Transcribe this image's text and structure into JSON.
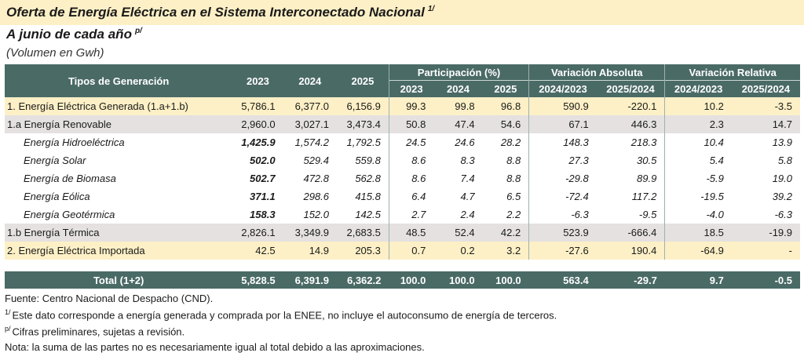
{
  "title": "Oferta de Energía Eléctrica  en el Sistema Interconectado Nacional",
  "title_note": "1/",
  "subtitle": "A junio de cada año",
  "subtitle_note": "p/",
  "units": "(Volumen en Gwh)",
  "header": {
    "tipos": "Tipos de Generación",
    "years": [
      "2023",
      "2024",
      "2025"
    ],
    "participacion": "Participación (%)",
    "participacion_years": [
      "2023",
      "2024",
      "2025"
    ],
    "var_abs": "Variación Absoluta",
    "var_abs_cols": [
      "2024/2023",
      "2025/2024"
    ],
    "var_rel": "Variación Relativa",
    "var_rel_cols": [
      "2024/2023",
      "2025/2024"
    ]
  },
  "rows": [
    {
      "label": "1.  Energía Eléctrica Generada (1.a+1.b)",
      "values": [
        "5,786.1",
        "6,377.0",
        "6,156.9",
        "99.3",
        "99.8",
        "96.8",
        "590.9",
        "-220.1",
        "10.2",
        "-3.5"
      ]
    },
    {
      "label": "1.a Energía Renovable",
      "values": [
        "2,960.0",
        "3,027.1",
        "3,473.4",
        "50.8",
        "47.4",
        "54.6",
        "67.1",
        "446.3",
        "2.3",
        "14.7"
      ]
    },
    {
      "label": "Energía Hidroeléctrica",
      "values": [
        "1,425.9",
        "1,574.2",
        "1,792.5",
        "24.5",
        "24.6",
        "28.2",
        "148.3",
        "218.3",
        "10.4",
        "13.9"
      ]
    },
    {
      "label": "Energía Solar",
      "values": [
        "502.0",
        "529.4",
        "559.8",
        "8.6",
        "8.3",
        "8.8",
        "27.3",
        "30.5",
        "5.4",
        "5.8"
      ]
    },
    {
      "label": "Energía de Biomasa",
      "values": [
        "502.7",
        "472.8",
        "562.8",
        "8.6",
        "7.4",
        "8.8",
        "-29.8",
        "89.9",
        "-5.9",
        "19.0"
      ]
    },
    {
      "label": "Energía Eólica",
      "values": [
        "371.1",
        "298.6",
        "415.8",
        "6.4",
        "4.7",
        "6.5",
        "-72.4",
        "117.2",
        "-19.5",
        "39.2"
      ]
    },
    {
      "label": "Energía Geotérmica",
      "values": [
        "158.3",
        "152.0",
        "142.5",
        "2.7",
        "2.4",
        "2.2",
        "-6.3",
        "-9.5",
        "-4.0",
        "-6.3"
      ]
    },
    {
      "label": "1.b Energía Térmica",
      "values": [
        "2,826.1",
        "3,349.9",
        "2,683.5",
        "48.5",
        "52.4",
        "42.2",
        "523.9",
        "-666.4",
        "18.5",
        "-19.9"
      ]
    },
    {
      "label": "2. Energía Eléctrica Importada",
      "values": [
        "42.5",
        "14.9",
        "205.3",
        "0.7",
        "0.2",
        "3.2",
        "-27.6",
        "190.4",
        "-64.9",
        "-"
      ]
    }
  ],
  "total": {
    "label": "Total (1+2)",
    "values": [
      "5,828.5",
      "6,391.9",
      "6,362.2",
      "100.0",
      "100.0",
      "100.0",
      "563.4",
      "-29.7",
      "9.7",
      "-0.5"
    ]
  },
  "footnotes": {
    "source": "Fuente: Centro Nacional de Despacho (CND).",
    "note1_mark": "1/",
    "note1": "Este dato corresponde a energía generada y comprada por la ENEE, no incluye el autoconsumo de energía de terceros.",
    "note2_mark": "p/",
    "note2": "Cifras preliminares, sujetas a revisión.",
    "nota": "Nota: la suma de las partes no es necesariamente igual al total debido a las aproximaciones."
  }
}
